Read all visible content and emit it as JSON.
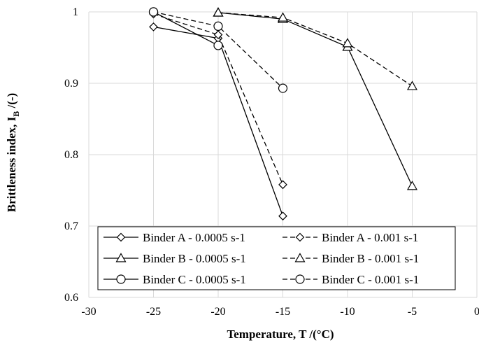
{
  "chart_data": {
    "type": "line",
    "xlabel": "Temperature, T /(°C)",
    "ylabel_main": "Brittleness index, I",
    "ylabel_sub": "B",
    "ylabel_tail": " /(-)",
    "xlim": [
      -30,
      0
    ],
    "ylim": [
      0.6,
      1.0
    ],
    "xticks": [
      -30,
      -25,
      -20,
      -15,
      -10,
      -5,
      0
    ],
    "xtick_labels": [
      "-30",
      "-25",
      "-20",
      "-15",
      "-10",
      "-5",
      "0"
    ],
    "yticks": [
      0.6,
      0.7,
      0.8,
      0.9,
      1.0
    ],
    "ytick_labels": [
      "0.6",
      "0.7",
      "0.8",
      "0.9",
      "1"
    ],
    "grid": "vertical and horizontal",
    "legend_position": "bottom-center",
    "series": [
      {
        "name": "Binder A - 0.0005 s-1",
        "marker": "diamond",
        "dashed": false,
        "x": [
          -25,
          -20,
          -15
        ],
        "y": [
          0.979,
          0.963,
          0.714
        ]
      },
      {
        "name": "Binder A - 0.001 s-1",
        "marker": "diamond",
        "dashed": true,
        "x": [
          -25,
          -20,
          -15
        ],
        "y": [
          0.997,
          0.968,
          0.758
        ]
      },
      {
        "name": "Binder B - 0.0005 s-1",
        "marker": "triangle",
        "dashed": false,
        "x": [
          -20,
          -15,
          -10,
          -5
        ],
        "y": [
          0.999,
          0.99,
          0.951,
          0.756
        ]
      },
      {
        "name": "Binder B - 0.001 s-1",
        "marker": "triangle",
        "dashed": true,
        "x": [
          -20,
          -15,
          -10,
          -5
        ],
        "y": [
          0.999,
          0.992,
          0.956,
          0.896
        ]
      },
      {
        "name": "Binder C - 0.0005 s-1",
        "marker": "circle",
        "dashed": false,
        "x": [
          -25,
          -20
        ],
        "y": [
          1.0,
          0.953
        ]
      },
      {
        "name": "Binder C - 0.001 s-1",
        "marker": "circle",
        "dashed": true,
        "x": [
          -25,
          -20,
          -15
        ],
        "y": [
          1.0,
          0.98,
          0.893
        ]
      }
    ]
  }
}
